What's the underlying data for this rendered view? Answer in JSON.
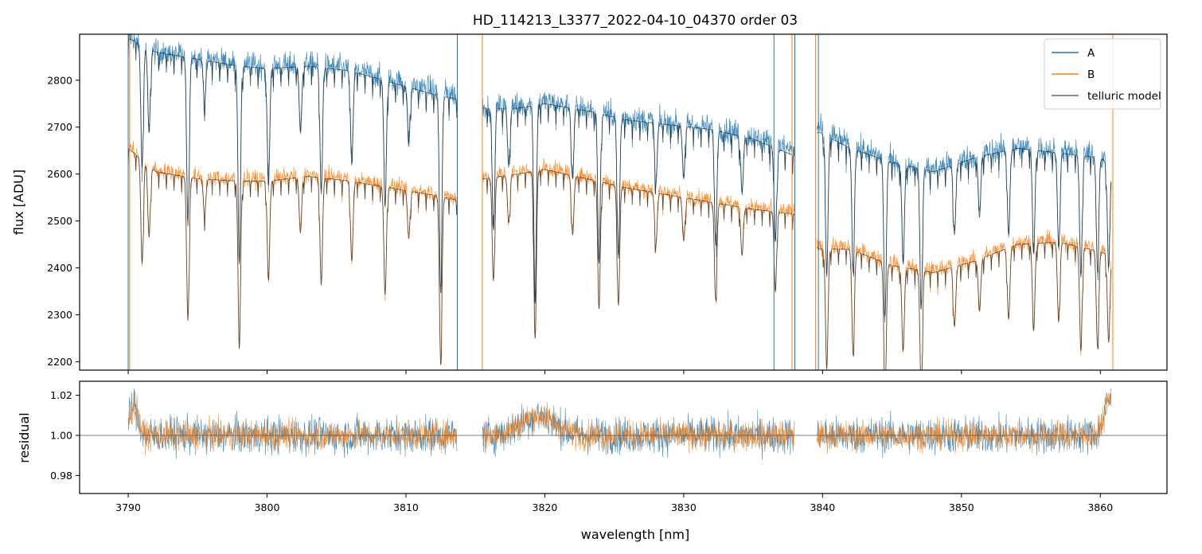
{
  "chart_data": [
    {
      "panel": "flux",
      "type": "line",
      "title": "HD_114213_L3377_2022-04-10_04370  order 03",
      "xlabel": "",
      "ylabel": "flux [ADU]",
      "xlim": [
        3786.5,
        3864.8
      ],
      "ylim": [
        2182,
        2898
      ],
      "yticks": [
        2200,
        2300,
        2400,
        2500,
        2600,
        2700,
        2800
      ],
      "xticks": [
        3790,
        3800,
        3810,
        3820,
        3830,
        3840,
        3850,
        3860
      ],
      "gaps": [
        [
          3813.7,
          3815.5
        ],
        [
          3838.0,
          3839.6
        ]
      ],
      "legend": {
        "position": "top-right",
        "entries": [
          "A",
          "B",
          "telluric model"
        ]
      },
      "series": [
        {
          "name": "A",
          "color": "#1f77b4",
          "x": [
            3790,
            3792,
            3795,
            3798,
            3800,
            3803,
            3806,
            3809,
            3812,
            3813.6,
            3815.6,
            3818,
            3820,
            3823,
            3826,
            3829,
            3832,
            3835,
            3837.9,
            3839.7,
            3842,
            3845,
            3848,
            3851,
            3854,
            3857,
            3860,
            3860.8
          ],
          "y": [
            2895,
            2860,
            2850,
            2835,
            2830,
            2835,
            2825,
            2800,
            2780,
            2770,
            2745,
            2745,
            2755,
            2740,
            2720,
            2710,
            2700,
            2680,
            2650,
            2700,
            2660,
            2630,
            2610,
            2640,
            2660,
            2650,
            2640,
            2620
          ]
        },
        {
          "name": "B",
          "color": "#ff7f0e",
          "x": [
            3790,
            3792,
            3795,
            3798,
            3800,
            3803,
            3806,
            3809,
            3812,
            3813.6,
            3815.6,
            3818,
            3820,
            3823,
            3826,
            3829,
            3832,
            3835,
            3837.9,
            3839.7,
            3842,
            3845,
            3848,
            3851,
            3854,
            3857,
            3860,
            3860.8
          ],
          "y": [
            2660,
            2610,
            2595,
            2590,
            2590,
            2600,
            2590,
            2575,
            2560,
            2550,
            2595,
            2605,
            2615,
            2595,
            2575,
            2560,
            2545,
            2530,
            2520,
            2445,
            2445,
            2410,
            2395,
            2420,
            2455,
            2460,
            2440,
            2430
          ]
        },
        {
          "name": "telluric model",
          "color": "#000000",
          "x": [
            3790,
            3792,
            3795,
            3798,
            3800,
            3803,
            3806,
            3809,
            3812,
            3813.6,
            3815.6,
            3818,
            3820,
            3823,
            3826,
            3829,
            3832,
            3835,
            3837.9,
            3839.7,
            3842,
            3845,
            3848,
            3851,
            3854,
            3857,
            3860,
            3860.8
          ],
          "y": [
            2890,
            2860,
            2845,
            2830,
            2825,
            2830,
            2820,
            2795,
            2770,
            2760,
            2740,
            2740,
            2750,
            2735,
            2715,
            2705,
            2695,
            2675,
            2640,
            2690,
            2655,
            2625,
            2605,
            2635,
            2655,
            2645,
            2635,
            2615
          ]
        }
      ],
      "absorption_lines": [
        {
          "x": 3791.0,
          "depth": 260
        },
        {
          "x": 3791.5,
          "depth": 180
        },
        {
          "x": 3794.3,
          "depth": 360
        },
        {
          "x": 3795.5,
          "depth": 90
        },
        {
          "x": 3798.0,
          "depth": 420
        },
        {
          "x": 3800.1,
          "depth": 250
        },
        {
          "x": 3802.4,
          "depth": 140
        },
        {
          "x": 3803.9,
          "depth": 270
        },
        {
          "x": 3806.1,
          "depth": 200
        },
        {
          "x": 3808.5,
          "depth": 270
        },
        {
          "x": 3810.2,
          "depth": 120
        },
        {
          "x": 3812.5,
          "depth": 420
        },
        {
          "x": 3816.3,
          "depth": 260
        },
        {
          "x": 3817.4,
          "depth": 120
        },
        {
          "x": 3819.3,
          "depth": 420
        },
        {
          "x": 3822.0,
          "depth": 150
        },
        {
          "x": 3823.9,
          "depth": 320
        },
        {
          "x": 3825.3,
          "depth": 300
        },
        {
          "x": 3828.0,
          "depth": 130
        },
        {
          "x": 3830.0,
          "depth": 110
        },
        {
          "x": 3832.3,
          "depth": 240
        },
        {
          "x": 3834.2,
          "depth": 120
        },
        {
          "x": 3836.6,
          "depth": 200
        },
        {
          "x": 3840.3,
          "depth": 300
        },
        {
          "x": 3842.2,
          "depth": 260
        },
        {
          "x": 3844.5,
          "depth": 330
        },
        {
          "x": 3845.8,
          "depth": 210
        },
        {
          "x": 3847.1,
          "depth": 300
        },
        {
          "x": 3849.5,
          "depth": 150
        },
        {
          "x": 3851.3,
          "depth": 130
        },
        {
          "x": 3853.4,
          "depth": 180
        },
        {
          "x": 3855.2,
          "depth": 220
        },
        {
          "x": 3857.0,
          "depth": 200
        },
        {
          "x": 3858.6,
          "depth": 260
        },
        {
          "x": 3859.8,
          "depth": 240
        },
        {
          "x": 3860.6,
          "depth": 220
        }
      ],
      "edge_spikes": [
        3790.0,
        3790.1,
        3813.7,
        3815.5,
        3836.5,
        3837.8,
        3838.0,
        3839.5,
        3839.7,
        3860.9
      ]
    },
    {
      "panel": "residual",
      "type": "line",
      "xlabel": "wavelength [nm]",
      "ylabel": "residual",
      "xlim": [
        3786.5,
        3864.8
      ],
      "ylim": [
        0.971,
        1.027
      ],
      "yticks": [
        0.98,
        1.0,
        1.02
      ],
      "xticks": [
        3790,
        3800,
        3810,
        3820,
        3830,
        3840,
        3850,
        3860
      ],
      "reference_line": 1.0,
      "series": [
        {
          "name": "A",
          "color": "#1f77b4",
          "center": 1.0,
          "noise": 0.009
        },
        {
          "name": "B",
          "color": "#ff7f0e",
          "center": 1.0,
          "noise": 0.007
        }
      ],
      "features": [
        {
          "x": 3819.5,
          "offset": 0.01,
          "width": 1.2
        },
        {
          "x": 3790.4,
          "offset": 0.015,
          "width": 0.3
        },
        {
          "x": 3860.7,
          "offset": 0.018,
          "width": 0.4
        }
      ]
    }
  ]
}
